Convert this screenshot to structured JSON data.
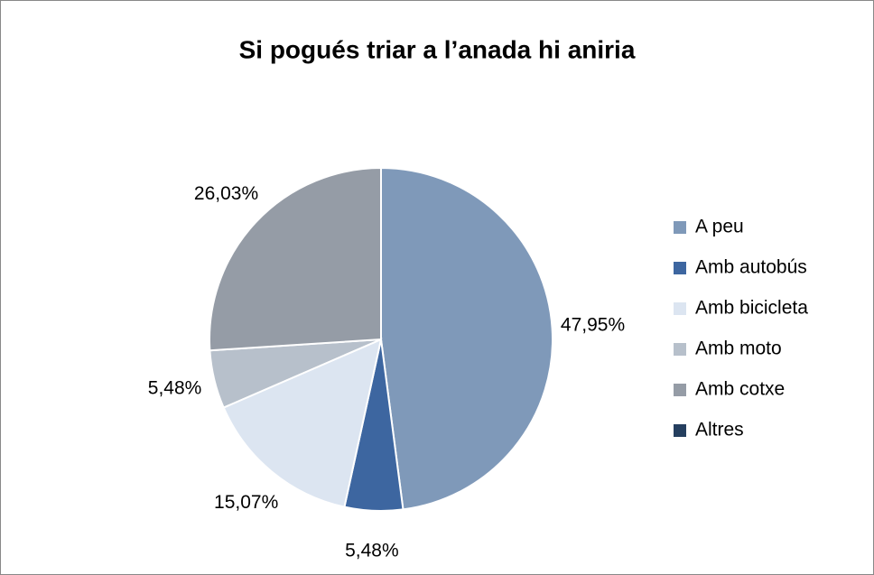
{
  "chart_data": {
    "type": "pie",
    "title": "Si pogués triar a l’anada hi aniria",
    "categories": [
      "A peu",
      "Amb autobús",
      "Amb bicicleta",
      "Amb moto",
      "Amb cotxe",
      "Altres"
    ],
    "values": [
      47.95,
      5.48,
      15.07,
      5.48,
      26.03,
      0
    ],
    "value_labels": [
      "47,95%",
      "5,48%",
      "15,07%",
      "5,48%",
      "26,03%",
      null
    ],
    "colors": [
      "#7f99b9",
      "#3d66a0",
      "#dce5f1",
      "#b7c0cb",
      "#959ca6",
      "#253f5f"
    ],
    "legend": "right"
  }
}
